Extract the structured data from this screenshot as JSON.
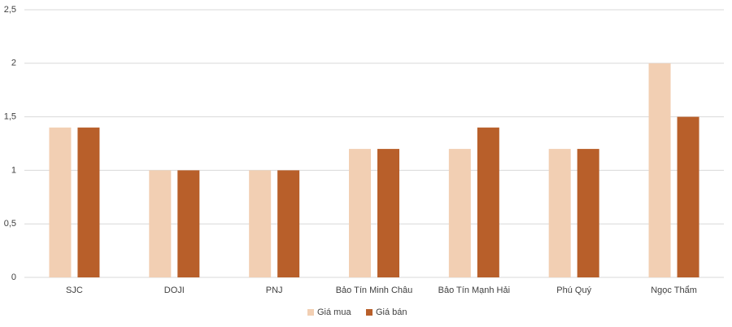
{
  "chart_data": {
    "type": "bar",
    "categories": [
      "SJC",
      "DOJI",
      "PNJ",
      "Bảo Tín Minh Châu",
      "Bảo Tín Mạnh Hải",
      "Phú Quý",
      "Ngọc Thẩm"
    ],
    "series": [
      {
        "name": "Giá mua",
        "color": "#f2cfb3",
        "values": [
          1.4,
          1,
          1,
          1.2,
          1.2,
          1.2,
          2
        ]
      },
      {
        "name": "Giá bán",
        "color": "#b85f2a",
        "values": [
          1.4,
          1,
          1,
          1.2,
          1.4,
          1.2,
          1.5
        ]
      }
    ],
    "ylim": [
      0,
      2.5
    ],
    "yticks": [
      0,
      {
        "value": 0.5,
        "label": "0,5"
      },
      1,
      {
        "value": 1.5,
        "label": "1,5"
      },
      2,
      {
        "value": 2.5,
        "label": "2,5"
      }
    ],
    "grid": true,
    "legend": "bottom"
  }
}
